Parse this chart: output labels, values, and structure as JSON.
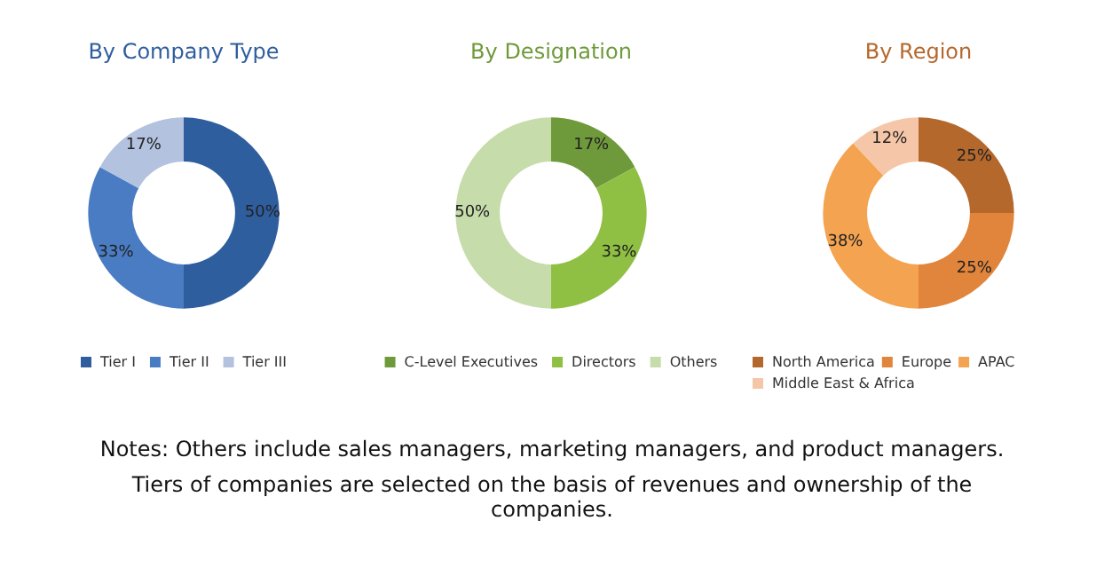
{
  "chart_data": [
    {
      "type": "donut",
      "title": "By Company Type",
      "categories": [
        "Tier I",
        "Tier II",
        "Tier III"
      ],
      "values": [
        50,
        33,
        17
      ],
      "colors": [
        "#2f5e9e",
        "#4a7cc4",
        "#b3c2df"
      ],
      "value_labels": [
        "50%",
        "33%",
        "17%"
      ],
      "legend": "bottom",
      "annotations": [
        "Notes: Others include sales managers, marketing managers, and product managers.",
        "Tiers of companies are selected on the basis of revenues and ownership of the companies."
      ]
    },
    {
      "type": "donut",
      "title": "By Designation",
      "categories": [
        "C-Level Executives",
        "Directors",
        "Others"
      ],
      "values": [
        17,
        33,
        50
      ],
      "colors": [
        "#6f9a3b",
        "#8fc043",
        "#c6dcaa"
      ],
      "value_labels": [
        "17%",
        "33%",
        "50%"
      ],
      "legend": "bottom"
    },
    {
      "type": "donut",
      "title": "By Region",
      "categories": [
        "North America",
        "Europe",
        "APAC",
        "Middle East & Africa"
      ],
      "values": [
        25,
        25,
        38,
        12
      ],
      "colors": [
        "#b5682c",
        "#e0853b",
        "#f4a350",
        "#f6c6a8"
      ],
      "value_labels": [
        "25%",
        "25%",
        "38%",
        "12%"
      ],
      "legend": "bottom"
    }
  ]
}
